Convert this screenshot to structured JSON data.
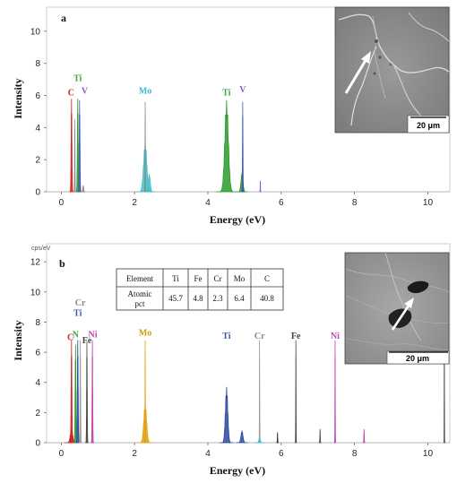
{
  "chart_data": [
    {
      "type": "line",
      "panel": "a",
      "xlabel": "Energy (eV)",
      "ylabel": "Intensity",
      "xlim": [
        -0.4,
        10.6
      ],
      "ylim": [
        0,
        11.5
      ],
      "xticks": [
        0,
        2,
        4,
        6,
        8,
        10
      ],
      "yticks": [
        0,
        2,
        4,
        6,
        8,
        10
      ],
      "peak_labels": [
        {
          "text": "C",
          "x": 0.27,
          "y": 6.0,
          "color": "#d62020"
        },
        {
          "text": "Ti",
          "x": 0.45,
          "y": 6.9,
          "color": "#3aa63a"
        },
        {
          "text": "V",
          "x": 0.64,
          "y": 6.1,
          "color": "#8a5cc8"
        },
        {
          "text": "Mo",
          "x": 2.29,
          "y": 6.1,
          "color": "#3ab6d0"
        },
        {
          "text": "Ti",
          "x": 4.51,
          "y": 6.0,
          "color": "#3aa63a"
        },
        {
          "text": "V",
          "x": 4.95,
          "y": 6.2,
          "color": "#8a5cc8"
        }
      ],
      "series": [
        {
          "color": "#d62020",
          "peaks": [
            {
              "x": 0.28,
              "h": 5.8,
              "w": 0.02
            }
          ]
        },
        {
          "color": "#2a9a2a",
          "peaks": [
            {
              "x": 0.45,
              "h": 5.8,
              "w": 0.02
            },
            {
              "x": 4.51,
              "h": 5.7,
              "w": 0.09
            },
            {
              "x": 4.93,
              "h": 1.2,
              "w": 0.05
            }
          ]
        },
        {
          "color": "#3a5aa8",
          "peaks": [
            {
              "x": 0.5,
              "h": 5.7,
              "w": 0.02
            },
            {
              "x": 4.95,
              "h": 5.6,
              "w": 0.012
            }
          ]
        },
        {
          "color": "#40c0cc",
          "peaks": [
            {
              "x": 2.29,
              "h": 3.1,
              "w": 0.08
            },
            {
              "x": 2.4,
              "h": 1.1,
              "w": 0.05
            }
          ]
        },
        {
          "color": "#888888",
          "peaks": [
            {
              "x": 0.37,
              "h": 4.5,
              "w": 0.01
            },
            {
              "x": 0.6,
              "h": 0.4,
              "w": 0.02
            },
            {
              "x": 2.29,
              "h": 5.6,
              "w": 0.008
            }
          ]
        },
        {
          "color": "#8a5cc8",
          "peaks": [
            {
              "x": 5.43,
              "h": 0.7,
              "w": 0.008
            }
          ]
        }
      ]
    },
    {
      "type": "line",
      "panel": "b",
      "unit": "cps/eV",
      "xlabel": "Energy (eV)",
      "ylabel": "Intensity",
      "xlim": [
        -0.4,
        10.6
      ],
      "ylim": [
        0,
        13.2
      ],
      "xticks": [
        0,
        2,
        4,
        6,
        8,
        10
      ],
      "yticks": [
        0,
        2,
        4,
        6,
        8,
        10,
        12
      ],
      "peak_labels": [
        {
          "text": "Cr",
          "x": 0.52,
          "y": 9.1,
          "color": "#888888"
        },
        {
          "text": "Ti",
          "x": 0.45,
          "y": 8.4,
          "color": "#3a5aa8"
        },
        {
          "text": "N",
          "x": 0.39,
          "y": 7.0,
          "color": "#3aa63a"
        },
        {
          "text": "C",
          "x": 0.25,
          "y": 6.8,
          "color": "#d62020"
        },
        {
          "text": "Fe",
          "x": 0.7,
          "y": 6.6,
          "color": "#444444"
        },
        {
          "text": "Ni",
          "x": 0.86,
          "y": 7.0,
          "color": "#c040b0"
        },
        {
          "text": "Mo",
          "x": 2.29,
          "y": 7.1,
          "color": "#c8a000"
        },
        {
          "text": "Ti",
          "x": 4.51,
          "y": 6.9,
          "color": "#3a5aa8"
        },
        {
          "text": "Cr",
          "x": 5.41,
          "y": 6.9,
          "color": "#888888"
        },
        {
          "text": "Fe",
          "x": 6.4,
          "y": 6.9,
          "color": "#444444"
        },
        {
          "text": "Ni",
          "x": 7.47,
          "y": 6.9,
          "color": "#c040b0"
        }
      ],
      "series": [
        {
          "color": "#d62020",
          "peaks": [
            {
              "x": 0.28,
              "h": 6.8,
              "w": 0.02
            },
            {
              "x": 0.28,
              "h": 0.9,
              "w": 0.06
            }
          ]
        },
        {
          "color": "#2a9a2a",
          "peaks": [
            {
              "x": 0.39,
              "h": 6.5,
              "w": 0.02
            }
          ]
        },
        {
          "color": "#2a4aa0",
          "peaks": [
            {
              "x": 0.45,
              "h": 6.8,
              "w": 0.02
            },
            {
              "x": 4.51,
              "h": 3.7,
              "w": 0.06
            },
            {
              "x": 4.93,
              "h": 0.8,
              "w": 0.05
            }
          ]
        },
        {
          "color": "#999999",
          "peaks": [
            {
              "x": 0.52,
              "h": 6.8,
              "w": 0.015
            },
            {
              "x": 5.41,
              "h": 6.8,
              "w": 0.008
            }
          ]
        },
        {
          "color": "#444444",
          "peaks": [
            {
              "x": 0.7,
              "h": 6.7,
              "w": 0.015
            },
            {
              "x": 6.4,
              "h": 6.8,
              "w": 0.008
            },
            {
              "x": 7.06,
              "h": 0.9,
              "w": 0.01
            }
          ]
        },
        {
          "color": "#c040b0",
          "peaks": [
            {
              "x": 0.85,
              "h": 6.8,
              "w": 0.015
            },
            {
              "x": 7.47,
              "h": 6.8,
              "w": 0.008
            },
            {
              "x": 8.26,
              "h": 0.9,
              "w": 0.01
            }
          ]
        },
        {
          "color": "#e0a010",
          "peaks": [
            {
              "x": 2.29,
              "h": 2.6,
              "w": 0.07
            },
            {
              "x": 2.29,
              "h": 6.8,
              "w": 0.008
            }
          ]
        },
        {
          "color": "#40c0cc",
          "peaks": [
            {
              "x": 5.41,
              "h": 0.3,
              "w": 0.04
            }
          ]
        },
        {
          "color": "#333333",
          "peaks": [
            {
              "x": 5.9,
              "h": 0.7,
              "w": 0.01
            },
            {
              "x": 10.45,
              "h": 6.8,
              "w": 0.005
            }
          ]
        }
      ],
      "table": {
        "headers": [
          "Element",
          "Ti",
          "Fe",
          "Cr",
          "Mo",
          "C"
        ],
        "row_label": [
          "Atomic",
          "pct"
        ],
        "values": [
          "45.7",
          "4.8",
          "2.3",
          "6.4",
          "40.8"
        ]
      }
    }
  ],
  "panels": [
    {
      "letter": "a",
      "scale_bar": "20 μm"
    },
    {
      "letter": "b",
      "scale_bar": "20 μm"
    }
  ]
}
